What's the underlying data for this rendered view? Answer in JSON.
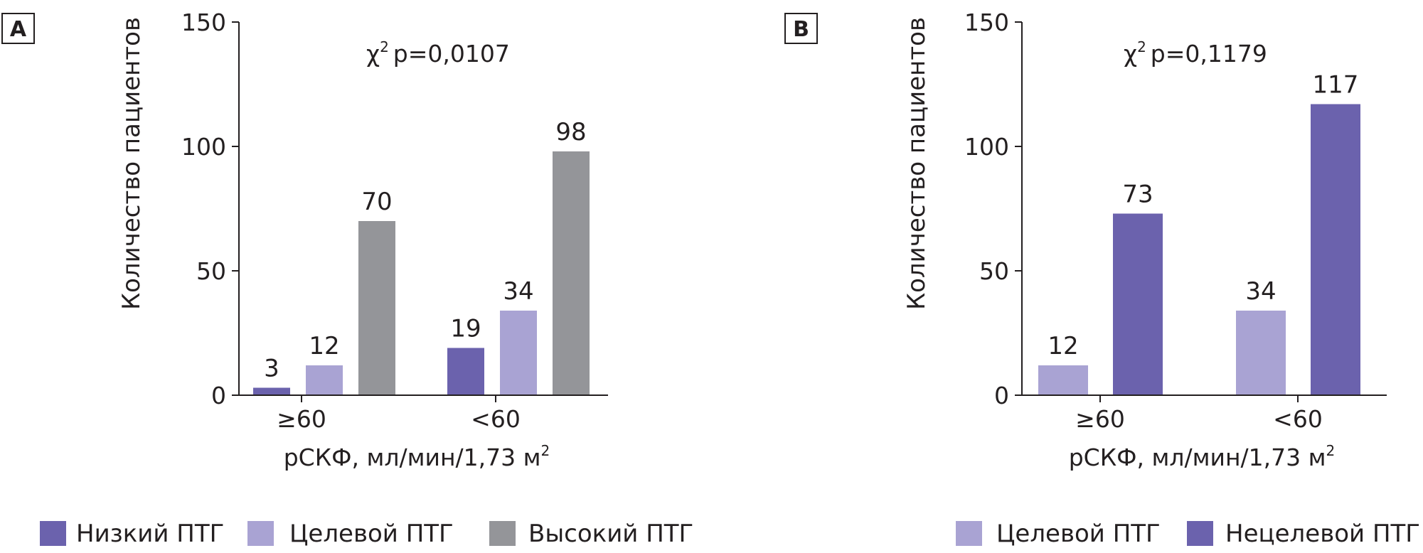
{
  "colors": {
    "low": "#6b62ad",
    "target": "#a9a3d3",
    "high": "#949599",
    "nontarget": "#6b62ad"
  },
  "chart_data": [
    {
      "type": "bar",
      "panel": "A",
      "stat": {
        "chi": "χ",
        "sup": "2",
        "p": "p=0,0107"
      },
      "ylabel": "Количество пациентов",
      "xlabel": {
        "main": "рСКФ, мл/мин/1,73 м",
        "sup": "2"
      },
      "ylim": [
        0,
        150
      ],
      "yticks": [
        "0",
        "50",
        "100",
        "150"
      ],
      "categories": [
        "≥60",
        "<60"
      ],
      "series": [
        {
          "name": "Низкий ПТГ",
          "color": "#6b62ad",
          "values": [
            3,
            19
          ],
          "labels": [
            "3",
            "19"
          ]
        },
        {
          "name": "Целевой ПТГ",
          "color": "#a9a3d3",
          "values": [
            12,
            34
          ],
          "labels": [
            "12",
            "34"
          ]
        },
        {
          "name": "Высокий ПТГ",
          "color": "#949599",
          "values": [
            70,
            98
          ],
          "labels": [
            "70",
            "98"
          ]
        }
      ]
    },
    {
      "type": "bar",
      "panel": "B",
      "stat": {
        "chi": "χ",
        "sup": "2",
        "p": "p=0,1179"
      },
      "ylabel": "Количество пациентов",
      "xlabel": {
        "main": "рСКФ, мл/мин/1,73 м",
        "sup": "2"
      },
      "ylim": [
        0,
        150
      ],
      "yticks": [
        "0",
        "50",
        "100",
        "150"
      ],
      "categories": [
        "≥60",
        "<60"
      ],
      "series": [
        {
          "name": "Целевой ПТГ",
          "color": "#a9a3d3",
          "values": [
            12,
            34
          ],
          "labels": [
            "12",
            "34"
          ]
        },
        {
          "name": "Нецелевой ПТГ",
          "color": "#6b62ad",
          "values": [
            73,
            117
          ],
          "labels": [
            "73",
            "117"
          ]
        }
      ]
    }
  ]
}
